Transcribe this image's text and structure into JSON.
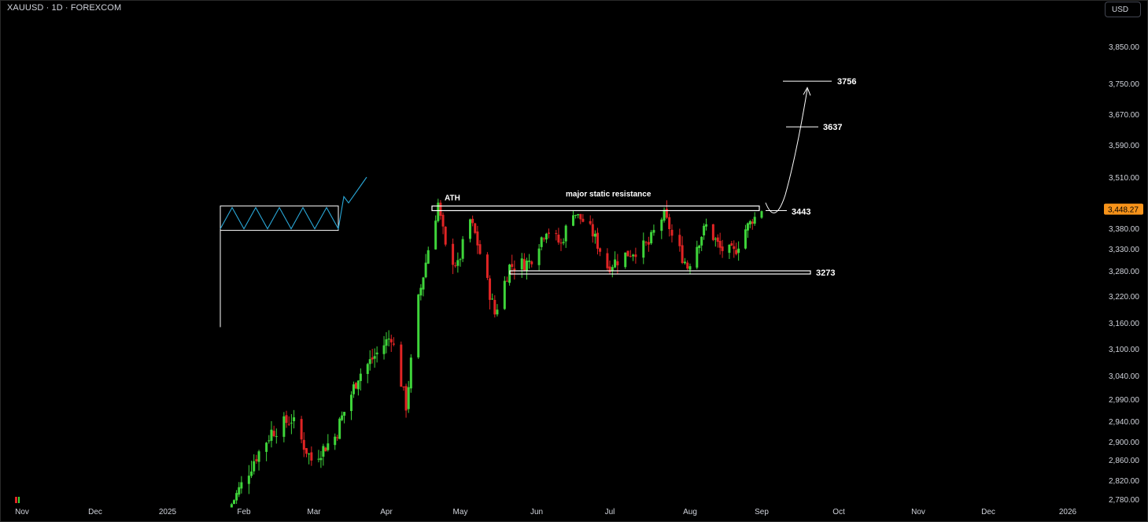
{
  "header": {
    "symbol": "XAUUSD · 1D · FOREXCOM",
    "currency": "USD"
  },
  "chart_data": {
    "type": "candlestick",
    "title": "",
    "y_ticks": [
      "3,850.00",
      "3,750.00",
      "3,670.00",
      "3,590.00",
      "3,510.00",
      "3,450.00",
      "3,380.00",
      "3,330.00",
      "3,280.00",
      "3,220.00",
      "3,160.00",
      "3,100.00",
      "3,040.00",
      "2,990.00",
      "2,940.00",
      "2,900.00",
      "2,860.00",
      "2,820.00",
      "2,780.00"
    ],
    "y_tick_values": [
      3850,
      3750,
      3670,
      3590,
      3510,
      3450,
      3380,
      3330,
      3280,
      3220,
      3160,
      3100,
      3040,
      2990,
      2940,
      2900,
      2860,
      2820,
      2780
    ],
    "x_ticks": [
      "Nov",
      "Dec",
      "2025",
      "Feb",
      "Mar",
      "Apr",
      "May",
      "Jun",
      "Jul",
      "Aug",
      "Sep",
      "Oct",
      "Nov",
      "Dec",
      "2026"
    ],
    "last_price": {
      "label": "3,448.27",
      "value": 3448.27
    },
    "colors": {
      "up": "#3ed43a",
      "down": "#e02424",
      "last": "#f7931a",
      "pattern": "#2aa8d8",
      "lines": "#ffffff"
    },
    "levels": [
      {
        "label": "3756",
        "value": 3756
      },
      {
        "label": "3637",
        "value": 3637
      },
      {
        "label": "3443",
        "value": 3443
      },
      {
        "label": "3273",
        "value": 3273
      }
    ],
    "annotations": [
      {
        "text": "ATH"
      },
      {
        "text": "major static resistance"
      }
    ],
    "waypoints": [
      [
        "2025-01-27",
        2770
      ],
      [
        "2025-02-05",
        2860
      ],
      [
        "2025-02-12",
        2920
      ],
      [
        "2025-02-20",
        2945
      ],
      [
        "2025-02-28",
        2860
      ],
      [
        "2025-03-10",
        2910
      ],
      [
        "2025-03-20",
        3040
      ],
      [
        "2025-03-28",
        3090
      ],
      [
        "2025-04-03",
        3130
      ],
      [
        "2025-04-09",
        2975
      ],
      [
        "2025-04-14",
        3210
      ],
      [
        "2025-04-18",
        3330
      ],
      [
        "2025-04-21",
        3420
      ],
      [
        "2025-04-22",
        3460
      ],
      [
        "2025-04-25",
        3330
      ],
      [
        "2025-04-30",
        3290
      ],
      [
        "2025-05-05",
        3410
      ],
      [
        "2025-05-09",
        3320
      ],
      [
        "2025-05-15",
        3180
      ],
      [
        "2025-05-21",
        3290
      ],
      [
        "2025-05-29",
        3300
      ],
      [
        "2025-06-05",
        3380
      ],
      [
        "2025-06-11",
        3340
      ],
      [
        "2025-06-16",
        3440
      ],
      [
        "2025-06-23",
        3380
      ],
      [
        "2025-06-30",
        3290
      ],
      [
        "2025-07-08",
        3320
      ],
      [
        "2025-07-16",
        3340
      ],
      [
        "2025-07-22",
        3430
      ],
      [
        "2025-07-25",
        3360
      ],
      [
        "2025-07-31",
        3290
      ],
      [
        "2025-08-08",
        3390
      ],
      [
        "2025-08-14",
        3330
      ],
      [
        "2025-08-20",
        3320
      ],
      [
        "2025-08-26",
        3390
      ],
      [
        "2025-09-01",
        3448
      ]
    ]
  }
}
